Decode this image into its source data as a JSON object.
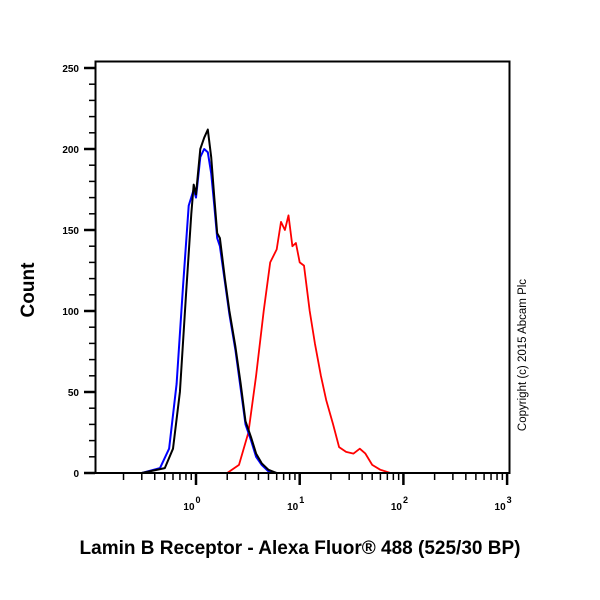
{
  "chart_data": {
    "type": "line",
    "title": "",
    "xlabel": "Lamin B Receptor - Alexa Fluor® 488 (525/30 BP)",
    "ylabel": "Count",
    "xscale": "log",
    "xlim": [
      0.1,
      1000
    ],
    "ylim": [
      0,
      250
    ],
    "xticks": [
      "10^0",
      "10^1",
      "10^2",
      "10^3"
    ],
    "yticks": [
      0,
      50,
      100,
      150,
      200,
      250
    ],
    "grid": false,
    "legend": null,
    "annotation": "Copyright (c) 2015 Abcam Plc",
    "series": [
      {
        "name": "black",
        "color": "#000000",
        "x": [
          0.1,
          0.3,
          0.5,
          0.6,
          0.7,
          0.8,
          0.9,
          0.95,
          1.0,
          1.1,
          1.2,
          1.3,
          1.4,
          1.5,
          1.6,
          1.7,
          1.9,
          2.1,
          2.4,
          2.7,
          3.0,
          3.4,
          3.8,
          4.3,
          5.0,
          6.0,
          8.0,
          1000
        ],
        "y": [
          0,
          0,
          3,
          15,
          50,
          110,
          160,
          178,
          172,
          200,
          207,
          212,
          195,
          170,
          148,
          145,
          120,
          100,
          78,
          55,
          32,
          22,
          12,
          6,
          2,
          0,
          0,
          0
        ]
      },
      {
        "name": "blue",
        "color": "#0000ff",
        "x": [
          0.1,
          0.3,
          0.45,
          0.55,
          0.65,
          0.75,
          0.85,
          0.95,
          1.0,
          1.1,
          1.2,
          1.3,
          1.4,
          1.5,
          1.6,
          1.7,
          1.9,
          2.1,
          2.4,
          2.7,
          3.0,
          3.4,
          3.8,
          4.3,
          5.0,
          6.0,
          8.0,
          1000
        ],
        "y": [
          0,
          0,
          3,
          15,
          55,
          115,
          165,
          175,
          170,
          195,
          200,
          198,
          185,
          165,
          145,
          140,
          118,
          98,
          76,
          52,
          30,
          20,
          10,
          5,
          1,
          0,
          0,
          0
        ]
      },
      {
        "name": "red",
        "color": "#ff0000",
        "x": [
          0.1,
          1.0,
          2.0,
          2.6,
          3.2,
          3.8,
          4.5,
          5.2,
          6.0,
          6.6,
          7.2,
          7.8,
          8.5,
          9.2,
          10.0,
          11.0,
          12.5,
          14.0,
          16.0,
          18.0,
          21.0,
          24.0,
          28.0,
          33.0,
          38.0,
          43.0,
          50.0,
          60.0,
          75.0,
          1000
        ],
        "y": [
          0,
          0,
          0,
          5,
          25,
          60,
          100,
          130,
          138,
          155,
          150,
          159,
          140,
          142,
          130,
          128,
          100,
          80,
          60,
          45,
          30,
          16,
          13,
          12,
          15,
          12,
          5,
          2,
          0,
          0
        ]
      }
    ]
  },
  "plot": {
    "y_tick_labels": [
      "0",
      "50",
      "100",
      "150",
      "200",
      "250"
    ],
    "x_tick_base": [
      "10",
      "10",
      "10",
      "10"
    ],
    "x_tick_exp": [
      "0",
      "1",
      "2",
      "3"
    ]
  },
  "labels": {
    "ylabel": "Count",
    "xlabel": "Lamin B Receptor - Alexa Fluor® 488 (525/30 BP)",
    "copyright": "Copyright (c) 2015 Abcam Plc"
  }
}
